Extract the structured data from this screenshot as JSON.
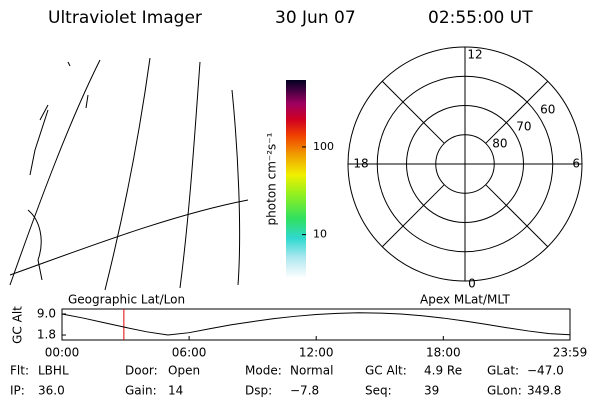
{
  "header": {
    "title": "Ultraviolet Imager",
    "date": "30 Jun 07",
    "time": "02:55:00 UT"
  },
  "colorbar": {
    "label": "photon cm⁻²s⁻¹",
    "scale": "log",
    "lim": [
      3.2,
      580
    ],
    "ticks": [
      10,
      100
    ]
  },
  "polar": {
    "lim": [
      90,
      50
    ],
    "rings": [
      80,
      70,
      60
    ],
    "hour_labels": [
      "12",
      "6",
      "0",
      "18"
    ]
  },
  "chart_data": {
    "type": "line",
    "title_left": "Geographic Lat/Lon",
    "title_right": "Apex MLat/MLT",
    "y_label": "GC Alt",
    "x": [
      0,
      1,
      2,
      3,
      4,
      5,
      6,
      7,
      8,
      9,
      10,
      11,
      12,
      13,
      14,
      15,
      16,
      17,
      18,
      19,
      20,
      21,
      22,
      23,
      23.98
    ],
    "series": [
      {
        "name": "GC Alt",
        "color": "#000000",
        "values": [
          9.0,
          7.6,
          6.0,
          4.4,
          2.9,
          1.8,
          2.6,
          4.0,
          5.3,
          6.4,
          7.4,
          8.2,
          8.8,
          9.2,
          9.4,
          9.3,
          9.0,
          8.4,
          7.6,
          6.6,
          5.5,
          4.3,
          3.2,
          2.3,
          1.9
        ]
      }
    ],
    "cursor": {
      "x": 2.92,
      "color": "#e00000"
    },
    "xlim": [
      0,
      23.98
    ],
    "ylim": [
      0.1,
      10.7
    ],
    "xticks": [
      {
        "value": 0,
        "label": "00:00"
      },
      {
        "value": 6,
        "label": "06:00"
      },
      {
        "value": 12,
        "label": "12:00"
      },
      {
        "value": 18,
        "label": "18:00"
      },
      {
        "value": 23.98,
        "label": "23:59"
      }
    ],
    "yticks": [
      {
        "value": 9.0,
        "label": "9.0"
      },
      {
        "value": 1.8,
        "label": "1.8"
      }
    ]
  },
  "footer": {
    "rows": [
      [
        {
          "label": "Flt:",
          "value": "LBHL"
        },
        {
          "label": "Door:",
          "value": "Open"
        },
        {
          "label": "Mode:",
          "value": "Normal"
        },
        {
          "label": "GC Alt:",
          "value": "4.9 Re"
        },
        {
          "label": "GLat:",
          "value": "−47.0"
        }
      ],
      [
        {
          "label": "IP:",
          "value": "36.0"
        },
        {
          "label": "Gain:",
          "value": "14"
        },
        {
          "label": "Dsp:",
          "value": "−7.8"
        },
        {
          "label": "Seq:",
          "value": "39"
        },
        {
          "label": "GLon:",
          "value": "349.8"
        }
      ]
    ]
  }
}
